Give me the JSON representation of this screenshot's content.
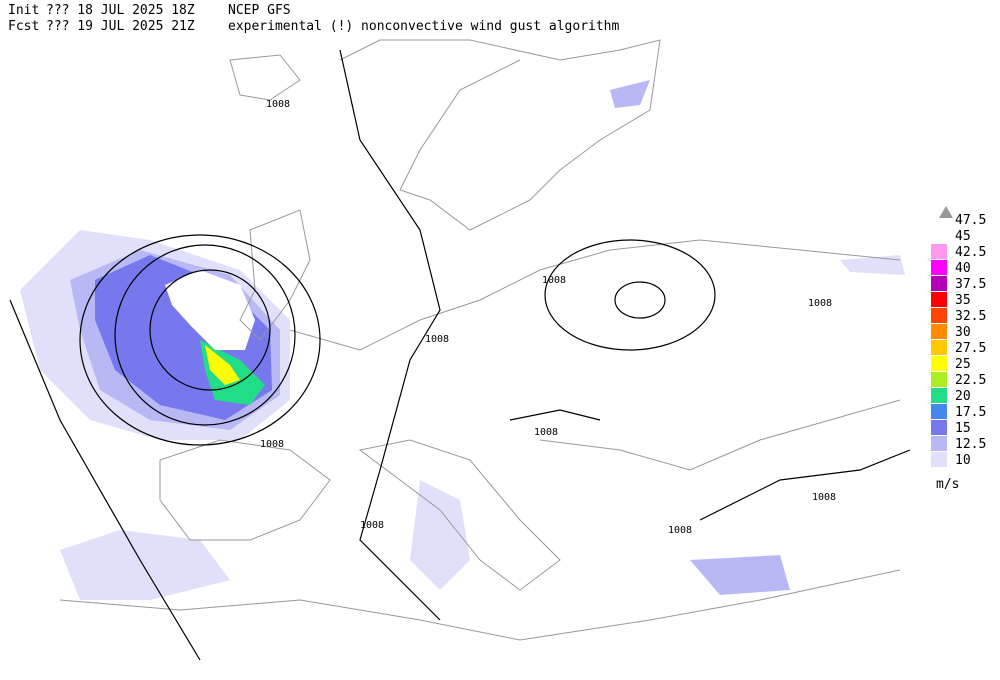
{
  "header": {
    "line1": [
      "Init",
      "??? 18 JUL 2025 18Z",
      "NCEP GFS"
    ],
    "line2": [
      "Fcst",
      "??? 19 JUL 2025 21Z",
      "experimental (!) nonconvective wind gust algorithm"
    ]
  },
  "legend": {
    "top": "47.5",
    "cap": "45",
    "items": [
      {
        "label": "42.5",
        "color": "#ff99ee"
      },
      {
        "label": "40",
        "color": "#ff00ff"
      },
      {
        "label": "37.5",
        "color": "#b400b4"
      },
      {
        "label": "35",
        "color": "#ff0000"
      },
      {
        "label": "32.5",
        "color": "#ff4500"
      },
      {
        "label": "30",
        "color": "#ff8c00"
      },
      {
        "label": "27.5",
        "color": "#ffc800"
      },
      {
        "label": "25",
        "color": "#ffff00"
      },
      {
        "label": "22.5",
        "color": "#aaee22"
      },
      {
        "label": "20",
        "color": "#22dd88"
      },
      {
        "label": "17.5",
        "color": "#4488ee"
      },
      {
        "label": "15",
        "color": "#7777ee"
      },
      {
        "label": "12.5",
        "color": "#b8b8f4"
      },
      {
        "label": "10",
        "color": "#e0e0fa"
      }
    ],
    "unit": "m/s"
  },
  "contours": [
    "1008",
    "1008",
    "1008",
    "1008",
    "1008",
    "1008",
    "1008",
    "1008",
    "1008"
  ]
}
